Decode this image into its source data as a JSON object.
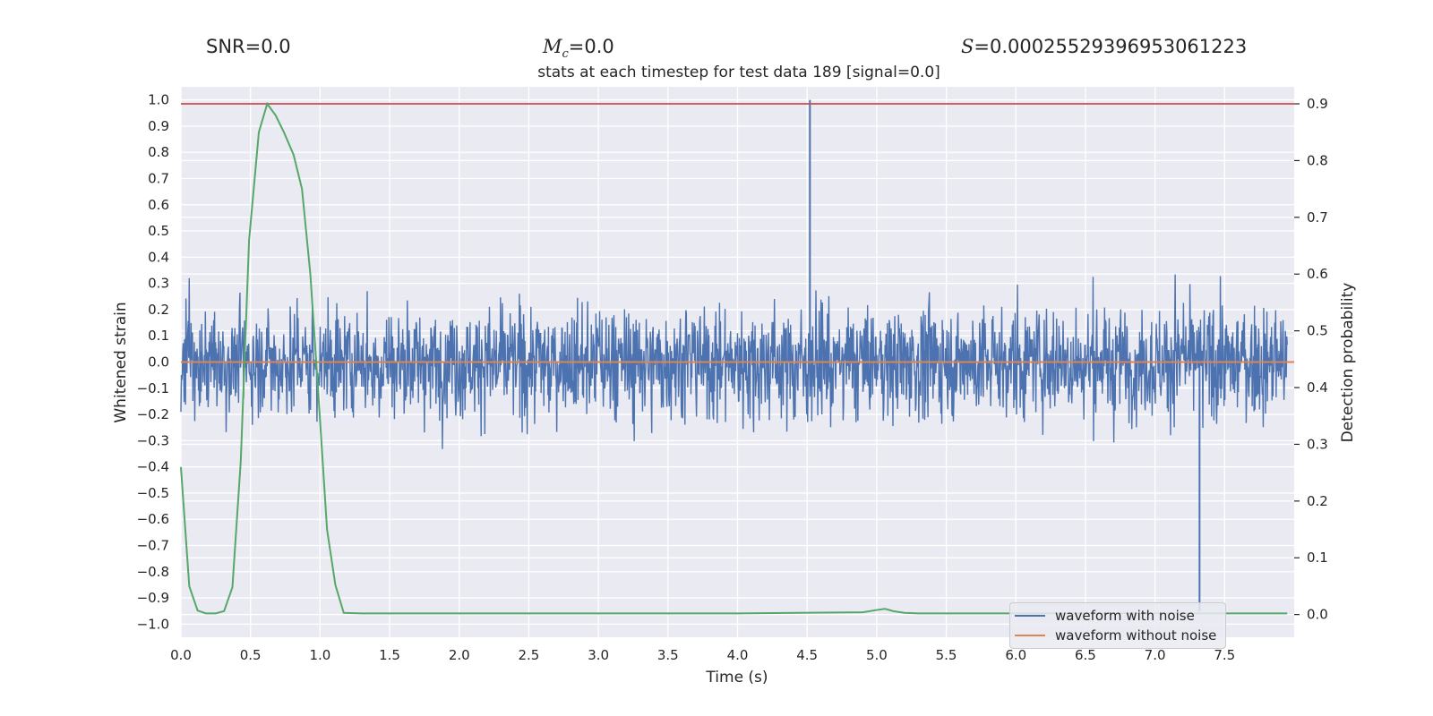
{
  "header": {
    "snr": "SNR=0.0",
    "mc_symbol": "M",
    "mc_sub": "c",
    "mc_value": "=0.0",
    "s_symbol": "S",
    "s_value": "=0.00025529396953061223"
  },
  "chart_data": {
    "type": "line",
    "title": "stats at each timestep for test data 189 [signal=0.0]",
    "xlabel": "Time (s)",
    "ylabel_left": "Whitened strain",
    "ylabel_right": "Detection probability",
    "xlim": [
      0.0,
      8.0
    ],
    "ylim_left": [
      -1.05,
      1.05
    ],
    "ylim_right": [
      -0.04,
      0.93
    ],
    "grid": true,
    "x_ticks": [
      "0.0",
      "0.5",
      "1.0",
      "1.5",
      "2.0",
      "2.5",
      "3.0",
      "3.5",
      "4.0",
      "4.5",
      "5.0",
      "5.5",
      "6.0",
      "6.5",
      "7.0",
      "7.5"
    ],
    "y_left_ticks": [
      "1.0",
      "0.9",
      "0.8",
      "0.7",
      "0.6",
      "0.5",
      "0.4",
      "0.3",
      "0.2",
      "0.1",
      "0.0",
      "−0.1",
      "−0.2",
      "−0.3",
      "−0.4",
      "−0.5",
      "−0.6",
      "−0.7",
      "−0.8",
      "−0.9",
      "−1.0"
    ],
    "y_right_ticks": [
      "0.0",
      "0.1",
      "0.2",
      "0.3",
      "0.4",
      "0.5",
      "0.6",
      "0.7",
      "0.8",
      "0.9"
    ],
    "threshold_line": {
      "axis": "right",
      "y": 0.9,
      "color": "#c44e52"
    },
    "series": [
      {
        "name": "waveform with noise",
        "axis": "left",
        "color": "#4c72b0",
        "kind": "noise",
        "typical_abs_max": 0.35,
        "max": 1.0,
        "min": -0.95
      },
      {
        "name": "waveform without noise",
        "axis": "left",
        "color": "#dd8452",
        "kind": "flat",
        "value": 0.0
      },
      {
        "name": "detection probability",
        "axis": "right",
        "color": "#55a868",
        "kind": "line",
        "x": [
          0.0,
          0.06,
          0.12,
          0.18,
          0.25,
          0.31,
          0.37,
          0.43,
          0.49,
          0.56,
          0.62,
          0.68,
          0.74,
          0.81,
          0.87,
          0.93,
          0.99,
          1.05,
          1.11,
          1.17,
          1.3,
          2.0,
          3.0,
          4.0,
          4.9,
          5.0,
          5.06,
          5.12,
          5.2,
          5.3,
          6.0,
          7.0,
          7.95
        ],
        "y": [
          0.26,
          0.05,
          0.007,
          0.002,
          0.002,
          0.006,
          0.048,
          0.27,
          0.66,
          0.85,
          0.9,
          0.88,
          0.85,
          0.81,
          0.75,
          0.6,
          0.38,
          0.15,
          0.052,
          0.003,
          0.002,
          0.002,
          0.002,
          0.002,
          0.004,
          0.008,
          0.01,
          0.006,
          0.003,
          0.002,
          0.002,
          0.002,
          0.002
        ]
      }
    ]
  }
}
